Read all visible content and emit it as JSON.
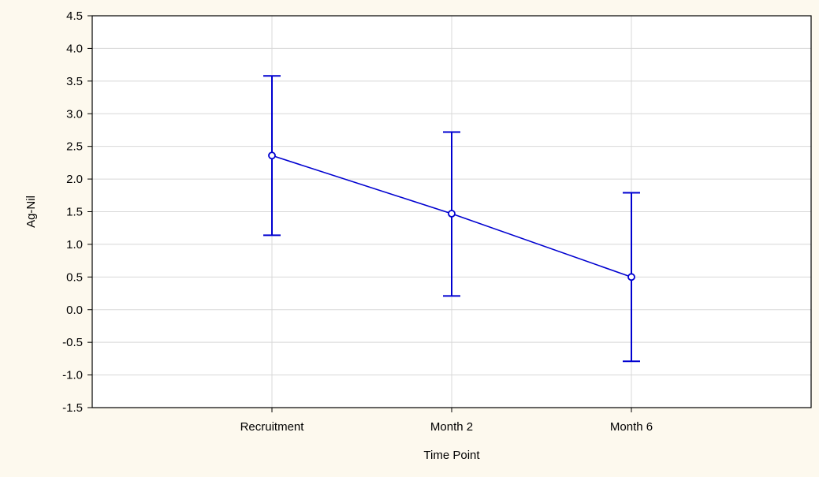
{
  "chart_data": {
    "type": "line",
    "title": "",
    "xlabel": "Time Point",
    "ylabel": "Ag-Nil",
    "categories": [
      "Recruitment",
      "Month 2",
      "Month 6"
    ],
    "series": [
      {
        "values": [
          2.36,
          1.47,
          0.5
        ],
        "error_low": [
          1.14,
          0.21,
          -0.79
        ],
        "error_high": [
          3.58,
          2.72,
          1.79
        ]
      }
    ],
    "ylim": [
      -1.5,
      4.5
    ],
    "yticks": [
      "4.5",
      "4.0",
      "3.5",
      "3.0",
      "2.5",
      "2.0",
      "1.5",
      "1.0",
      "0.5",
      "0.0",
      "-0.5",
      "-1.0",
      "-1.5"
    ],
    "grid": true,
    "legend": "none",
    "colors": {
      "series": "#0000d0",
      "plot_background": "#ffffff",
      "figure_background": "#fdf9ee",
      "grid": "#d8d8d8"
    }
  }
}
